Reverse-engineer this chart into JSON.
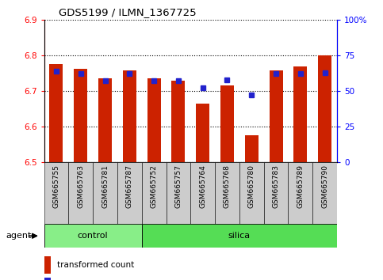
{
  "title": "GDS5199 / ILMN_1367725",
  "samples": [
    "GSM665755",
    "GSM665763",
    "GSM665781",
    "GSM665787",
    "GSM665752",
    "GSM665757",
    "GSM665764",
    "GSM665768",
    "GSM665780",
    "GSM665783",
    "GSM665789",
    "GSM665790"
  ],
  "transformed_counts": [
    6.775,
    6.762,
    6.735,
    6.758,
    6.735,
    6.728,
    6.665,
    6.715,
    6.575,
    6.758,
    6.768,
    6.8
  ],
  "percentile_ranks": [
    64,
    62,
    57,
    62,
    57,
    57,
    52,
    58,
    47,
    62,
    62,
    63
  ],
  "n_control": 4,
  "n_silica": 8,
  "y_min": 6.5,
  "y_max": 6.9,
  "y_ticks": [
    6.5,
    6.6,
    6.7,
    6.8,
    6.9
  ],
  "y2_ticks": [
    0,
    25,
    50,
    75,
    100
  ],
  "y2_tick_labels": [
    "0",
    "25",
    "50",
    "75",
    "100%"
  ],
  "bar_color": "#cc2200",
  "dot_color": "#2222cc",
  "control_color": "#88ee88",
  "silica_color": "#55dd55",
  "xtick_bg_color": "#cccccc",
  "bar_width": 0.55,
  "base_value": 6.5,
  "figsize": [
    4.83,
    3.54
  ],
  "dpi": 100
}
